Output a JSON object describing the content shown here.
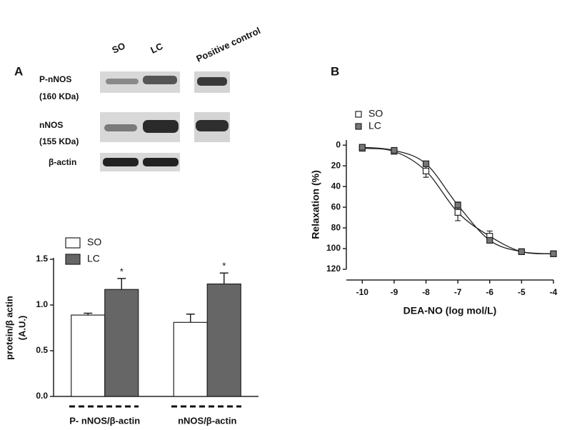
{
  "panel_labels": [
    "A",
    "B"
  ],
  "blot": {
    "columns": [
      "SO",
      "LC",
      "Positive control"
    ],
    "rows": [
      [
        "P-nNOS",
        "(160 KDa)"
      ],
      [
        "nNOS",
        "(155 KDa)"
      ],
      [
        "β-actin"
      ]
    ]
  },
  "chart_data": [
    {
      "type": "bar",
      "ylabel": [
        "protein/β actin",
        "(A.U.)"
      ],
      "categories": [
        "P- nNOS/β-actin",
        "nNOS/β-actin"
      ],
      "series": [
        {
          "name": "SO",
          "color": "#ffffff",
          "values": [
            0.89,
            0.81
          ],
          "errors": [
            0.02,
            0.09
          ]
        },
        {
          "name": "LC",
          "color": "#666666",
          "values": [
            1.17,
            1.23
          ],
          "errors": [
            0.12,
            0.12
          ],
          "significance": [
            "*",
            "*"
          ]
        }
      ],
      "ylim": [
        0,
        1.5
      ],
      "yticks": [
        {
          "value": 0,
          "label": "0.0"
        },
        0.5,
        {
          "value": 1,
          "label": "1.0"
        },
        1.5
      ],
      "legend": "top-left"
    },
    {
      "type": "scatter",
      "xlabel": "DEA-NO (log mol/L)",
      "ylabel": "Relaxation (%)",
      "x": [
        -10,
        -9,
        -8,
        -7,
        -6,
        -5,
        -4
      ],
      "series": [
        {
          "name": "SO",
          "color": "#ffffff",
          "values": [
            3,
            6,
            25,
            65,
            88,
            103,
            105
          ],
          "errors": [
            1,
            1,
            6,
            8,
            5,
            1,
            2
          ]
        },
        {
          "name": "LC",
          "color": "#777777",
          "values": [
            2,
            5,
            18,
            58,
            92,
            103,
            105
          ],
          "errors": [
            1,
            1,
            2,
            3,
            2,
            1,
            2
          ]
        }
      ],
      "xlim": [
        -10.5,
        -4
      ],
      "xticks": [
        -10,
        -9,
        -8,
        -7,
        -6,
        -5,
        -4
      ],
      "ylim": [
        -5,
        120
      ],
      "y_reversed": true,
      "yticks": [
        0,
        20,
        40,
        60,
        80,
        100,
        120
      ],
      "fit_line": true,
      "legend": "top-left"
    }
  ]
}
